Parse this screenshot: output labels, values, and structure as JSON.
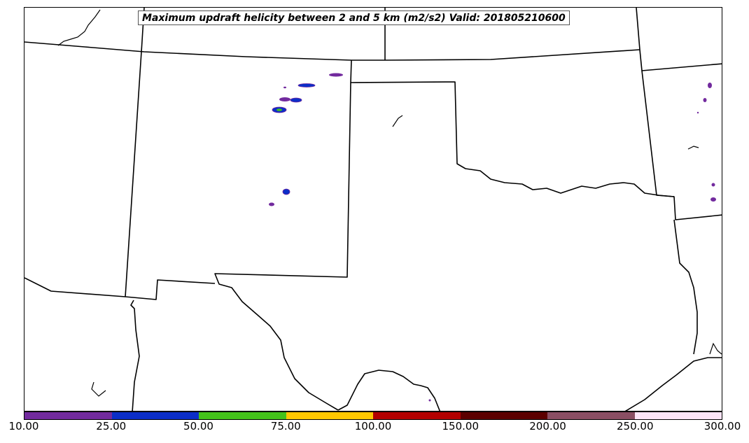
{
  "title": "Maximum updraft helicity between 2 and 5 km (m2/s2) Valid: 201805210600",
  "colorbar": {
    "segments": [
      {
        "color": "#722a9e"
      },
      {
        "color": "#0c2ec8"
      },
      {
        "color": "#44c21a"
      },
      {
        "color": "#ffc800"
      },
      {
        "color": "#b30000"
      },
      {
        "color": "#5c0000"
      },
      {
        "color": "#8a4e63"
      },
      {
        "color": "#fce4f7"
      }
    ],
    "ticks": [
      "10.00",
      "25.00",
      "50.00",
      "75.00",
      "100.00",
      "150.00",
      "200.00",
      "250.00",
      "300.00"
    ]
  },
  "map": {
    "variable": "Maximum updraft helicity",
    "units": "m2/s2",
    "boundaries": [
      "state-borders",
      "coastline"
    ],
    "notable_fields": [
      {
        "region": "northeast New Mexico / southeast Colorado",
        "level_color": "#722a9e"
      },
      {
        "region": "northeast New Mexico",
        "level_color": "#0c2ec8"
      },
      {
        "region": "northeast New Mexico",
        "level_color": "#44c21a"
      },
      {
        "region": "eastern Arkansas",
        "level_color": "#722a9e"
      }
    ]
  }
}
